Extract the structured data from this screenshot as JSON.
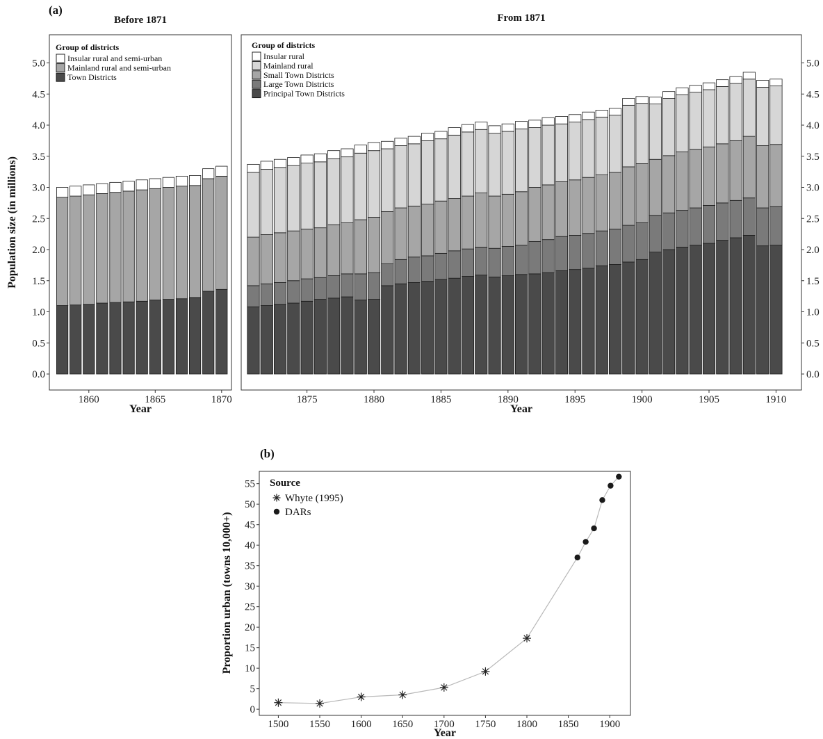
{
  "chart_data": [
    {
      "id": "a-before",
      "type": "bar",
      "stacked": true,
      "panel_label": "(a)",
      "title": "Before 1871",
      "xlabel": "Year",
      "ylabel": "Population size (in millions)",
      "xticks": [
        1860,
        1865,
        1870
      ],
      "yticks": [
        "0.0",
        "0.5",
        "1.0",
        "1.5",
        "2.0",
        "2.5",
        "3.0",
        "3.5",
        "4.0",
        "4.5",
        "5.0"
      ],
      "ylim": [
        0,
        5.4
      ],
      "legend_title": "Group of districts",
      "legend_position": "top-left",
      "categories": [
        1858,
        1859,
        1860,
        1861,
        1862,
        1863,
        1864,
        1865,
        1866,
        1867,
        1868,
        1869,
        1870
      ],
      "series": [
        {
          "name": "Town Districts",
          "color": "#4a4a4a",
          "values": [
            1.1,
            1.11,
            1.12,
            1.14,
            1.15,
            1.16,
            1.17,
            1.19,
            1.2,
            1.21,
            1.23,
            1.33,
            1.36
          ]
        },
        {
          "name": "Mainland rural and semi-urban",
          "color": "#a6a6a6",
          "values": [
            1.74,
            1.75,
            1.76,
            1.76,
            1.77,
            1.78,
            1.79,
            1.79,
            1.8,
            1.81,
            1.8,
            1.81,
            1.82
          ]
        },
        {
          "name": "Insular rural and semi-urban",
          "color": "#ffffff",
          "values": [
            0.16,
            0.16,
            0.16,
            0.16,
            0.16,
            0.16,
            0.16,
            0.16,
            0.16,
            0.16,
            0.16,
            0.16,
            0.16
          ]
        }
      ]
    },
    {
      "id": "a-from",
      "type": "bar",
      "stacked": true,
      "title": "From 1871",
      "xlabel": "Year",
      "xticks": [
        1875,
        1880,
        1885,
        1890,
        1895,
        1900,
        1905,
        1910
      ],
      "yticks": [
        "0.0",
        "0.5",
        "1.0",
        "1.5",
        "2.0",
        "2.5",
        "3.0",
        "3.5",
        "4.0",
        "4.5",
        "5.0"
      ],
      "ylim": [
        0,
        5.4
      ],
      "legend_title": "Group of districts",
      "legend_position": "top-left",
      "categories": [
        1871,
        1872,
        1873,
        1874,
        1875,
        1876,
        1877,
        1878,
        1879,
        1880,
        1881,
        1882,
        1883,
        1884,
        1885,
        1886,
        1887,
        1888,
        1889,
        1890,
        1891,
        1892,
        1893,
        1894,
        1895,
        1896,
        1897,
        1898,
        1899,
        1900,
        1901,
        1902,
        1903,
        1904,
        1905,
        1906,
        1907,
        1908,
        1909,
        1910
      ],
      "series": [
        {
          "name": "Principal Town Districts",
          "color": "#4a4a4a",
          "values": [
            1.08,
            1.1,
            1.12,
            1.14,
            1.17,
            1.2,
            1.22,
            1.24,
            1.19,
            1.2,
            1.42,
            1.45,
            1.47,
            1.49,
            1.52,
            1.54,
            1.57,
            1.59,
            1.56,
            1.58,
            1.6,
            1.61,
            1.63,
            1.66,
            1.68,
            1.7,
            1.74,
            1.76,
            1.8,
            1.84,
            1.96,
            2.0,
            2.04,
            2.07,
            2.1,
            2.15,
            2.19,
            2.23,
            2.06,
            2.07
          ]
        },
        {
          "name": "Large Town Districts",
          "color": "#7a7a7a",
          "values": [
            0.34,
            0.35,
            0.35,
            0.36,
            0.36,
            0.35,
            0.36,
            0.37,
            0.42,
            0.43,
            0.35,
            0.39,
            0.41,
            0.41,
            0.42,
            0.44,
            0.44,
            0.45,
            0.46,
            0.47,
            0.47,
            0.52,
            0.53,
            0.55,
            0.55,
            0.56,
            0.56,
            0.57,
            0.59,
            0.59,
            0.59,
            0.59,
            0.59,
            0.6,
            0.61,
            0.6,
            0.6,
            0.6,
            0.61,
            0.62
          ]
        },
        {
          "name": "Small Town Districts",
          "color": "#a6a6a6",
          "values": [
            0.78,
            0.79,
            0.8,
            0.8,
            0.8,
            0.8,
            0.82,
            0.82,
            0.87,
            0.89,
            0.84,
            0.83,
            0.82,
            0.83,
            0.84,
            0.84,
            0.85,
            0.87,
            0.84,
            0.84,
            0.86,
            0.87,
            0.88,
            0.88,
            0.89,
            0.9,
            0.9,
            0.91,
            0.94,
            0.95,
            0.9,
            0.92,
            0.94,
            0.94,
            0.94,
            0.95,
            0.96,
            0.99,
            1.0,
            1.0
          ]
        },
        {
          "name": "Mainland rural",
          "color": "#d6d6d6",
          "values": [
            1.04,
            1.05,
            1.05,
            1.05,
            1.06,
            1.06,
            1.06,
            1.06,
            1.07,
            1.07,
            1.01,
            1.0,
            1.0,
            1.02,
            1.0,
            1.02,
            1.03,
            1.02,
            1.01,
            1.01,
            1.01,
            0.96,
            0.96,
            0.93,
            0.93,
            0.93,
            0.93,
            0.92,
            0.99,
            0.97,
            0.89,
            0.92,
            0.92,
            0.92,
            0.92,
            0.92,
            0.92,
            0.92,
            0.94,
            0.94
          ]
        },
        {
          "name": "Insular rural",
          "color": "#ffffff",
          "values": [
            0.13,
            0.13,
            0.13,
            0.13,
            0.13,
            0.13,
            0.13,
            0.13,
            0.13,
            0.13,
            0.12,
            0.12,
            0.12,
            0.12,
            0.12,
            0.12,
            0.12,
            0.12,
            0.12,
            0.12,
            0.12,
            0.12,
            0.12,
            0.12,
            0.12,
            0.12,
            0.11,
            0.11,
            0.11,
            0.11,
            0.11,
            0.11,
            0.11,
            0.11,
            0.11,
            0.11,
            0.11,
            0.11,
            0.11,
            0.11
          ]
        }
      ]
    },
    {
      "id": "b",
      "type": "scatter",
      "connected": true,
      "panel_label": "(b)",
      "xlabel": "Year",
      "ylabel": "Proportion urban (towns 10,000+)",
      "xticks": [
        1500,
        1550,
        1600,
        1650,
        1700,
        1750,
        1800,
        1850,
        1900
      ],
      "yticks": [
        0,
        5,
        10,
        15,
        20,
        25,
        30,
        35,
        40,
        45,
        50,
        55
      ],
      "xlim": [
        1477,
        1925
      ],
      "ylim": [
        -1.5,
        58
      ],
      "legend_title": "Source",
      "legend_position": "top-left",
      "series": [
        {
          "name": "Whyte (1995)",
          "marker": "asterisk",
          "x": [
            1500,
            1550,
            1600,
            1650,
            1700,
            1750,
            1800
          ],
          "y": [
            1.6,
            1.4,
            3.0,
            3.5,
            5.3,
            9.2,
            17.3
          ]
        },
        {
          "name": "DARs",
          "marker": "dot",
          "x": [
            1861,
            1871,
            1881,
            1891,
            1901,
            1911
          ],
          "y": [
            37.0,
            40.8,
            44.1,
            51.0,
            54.5,
            56.7
          ]
        }
      ]
    }
  ]
}
